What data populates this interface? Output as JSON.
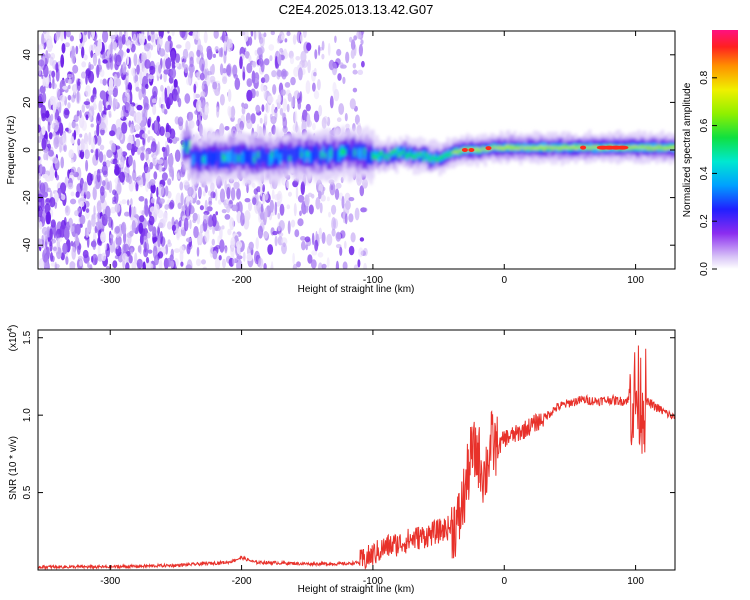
{
  "chart_data": [
    {
      "type": "heatmap",
      "title": "C2E4.2025.013.13.42.G07",
      "xlabel": "Height of straight line (km)",
      "ylabel": "Frequency (Hz)",
      "xlim": [
        -355,
        130
      ],
      "ylim": [
        -50,
        50
      ],
      "x_ticks": [
        -300,
        -200,
        -100,
        0,
        100
      ],
      "x_tick_labels": [
        "-300",
        "-200",
        "-100",
        "0",
        "100"
      ],
      "y_ticks": [
        -40,
        -20,
        0,
        20,
        40
      ],
      "y_tick_labels": [
        "-40",
        "-20",
        "0",
        "20",
        "40"
      ],
      "colorbar": {
        "label": "Normalized spectral amplitude",
        "range": [
          0,
          1
        ],
        "ticks": [
          0.0,
          0.2,
          0.4,
          0.6,
          0.8
        ],
        "tick_labels": [
          "0.0",
          "0.2",
          "0.4",
          "0.6",
          "0.8"
        ]
      },
      "ridge_track": [
        {
          "x": -240,
          "f": -4
        },
        {
          "x": -220,
          "f": -3
        },
        {
          "x": -200,
          "f": -3
        },
        {
          "x": -180,
          "f": -3
        },
        {
          "x": -160,
          "f": -2
        },
        {
          "x": -140,
          "f": -2
        },
        {
          "x": -120,
          "f": -1
        },
        {
          "x": -100,
          "f": -2
        },
        {
          "x": -90,
          "f": -3
        },
        {
          "x": -80,
          "f": -1
        },
        {
          "x": -70,
          "f": -2
        },
        {
          "x": -60,
          "f": -3
        },
        {
          "x": -50,
          "f": -4
        },
        {
          "x": -45,
          "f": -2
        },
        {
          "x": -40,
          "f": -1
        },
        {
          "x": -30,
          "f": 0
        },
        {
          "x": -20,
          "f": 0
        },
        {
          "x": -10,
          "f": 1
        },
        {
          "x": 0,
          "f": 1
        },
        {
          "x": 20,
          "f": 1
        },
        {
          "x": 40,
          "f": 1
        },
        {
          "x": 60,
          "f": 1
        },
        {
          "x": 80,
          "f": 1
        },
        {
          "x": 100,
          "f": 1
        },
        {
          "x": 130,
          "f": 1
        }
      ]
    },
    {
      "type": "line",
      "xlabel": "Height of straight line (km)",
      "ylabel": "SNR (10 * v/v)",
      "y_scale_note": "(x10",
      "y_scale_exp": "4",
      "xlim": [
        -355,
        130
      ],
      "ylim": [
        0,
        1.55
      ],
      "x_ticks": [
        -300,
        -200,
        -100,
        0,
        100
      ],
      "x_tick_labels": [
        "-300",
        "-200",
        "-100",
        "0",
        "100"
      ],
      "y_ticks": [
        0.5,
        1.0,
        1.5
      ],
      "y_tick_labels": [
        "0.5",
        "1.0",
        "1.5"
      ],
      "series": [
        {
          "name": "SNR",
          "color": "#e8312a",
          "x": [
            -355,
            -300,
            -250,
            -210,
            -200,
            -190,
            -150,
            -120,
            -110,
            -100,
            -90,
            -80,
            -70,
            -60,
            -50,
            -40,
            -35,
            -30,
            -25,
            -20,
            -15,
            -10,
            -5,
            0,
            10,
            20,
            30,
            40,
            50,
            60,
            70,
            80,
            90,
            95,
            100,
            105,
            110,
            120,
            130
          ],
          "values": [
            0.02,
            0.02,
            0.03,
            0.05,
            0.08,
            0.05,
            0.04,
            0.04,
            0.05,
            0.1,
            0.15,
            0.17,
            0.2,
            0.22,
            0.25,
            0.28,
            0.3,
            0.5,
            0.75,
            0.75,
            0.6,
            0.82,
            0.78,
            0.85,
            0.88,
            0.93,
            0.98,
            1.05,
            1.08,
            1.1,
            1.09,
            1.1,
            1.09,
            1.1,
            1.12,
            1.1,
            1.08,
            1.03,
            0.98
          ]
        }
      ]
    }
  ]
}
